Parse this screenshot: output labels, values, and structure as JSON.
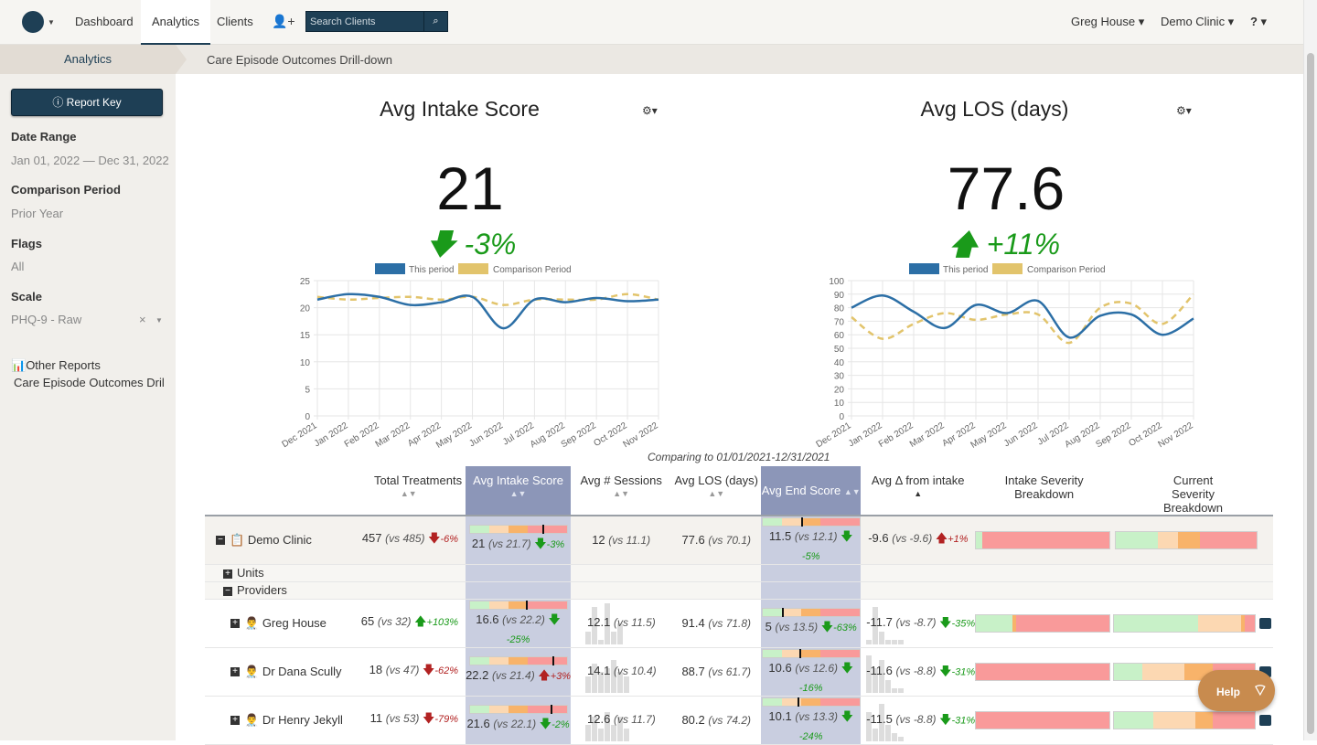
{
  "nav": {
    "items": [
      "Dashboard",
      "Analytics",
      "Clients"
    ],
    "search_placeholder": "Search Clients",
    "user": "Greg House ▾",
    "clinic": "Demo Clinic ▾",
    "help_menu": "? ▾"
  },
  "breadcrumb": {
    "section": "Analytics",
    "page": "Care Episode Outcomes Drill-down"
  },
  "sidebar": {
    "report_key": "Report Key",
    "date_range_label": "Date Range",
    "date_range_value": "Jan 01, 2022 — Dec 31, 2022",
    "comparison_label": "Comparison Period",
    "comparison_value": "Prior Year",
    "flags_label": "Flags",
    "flags_value": "All",
    "scale_label": "Scale",
    "scale_value": "PHQ-9 - Raw",
    "other_reports_label": "Other Reports",
    "other_reports_value": "Care Episode Outcomes Drill-down"
  },
  "kpis": [
    {
      "title": "Avg Intake Score",
      "value": "21",
      "change": "-3%",
      "direction": "down"
    },
    {
      "title": "Avg LOS (days)",
      "value": "77.6",
      "change": "+11%",
      "direction": "up"
    }
  ],
  "legend": {
    "this_period": "This period",
    "comparison": "Comparison Period"
  },
  "colors": {
    "this_period": "#2c6fa6",
    "comparison": "#e2c46c",
    "navy": "#1e3f55"
  },
  "chart_data": [
    {
      "type": "line",
      "x": [
        "Dec 2021",
        "Jan 2022",
        "Feb 2022",
        "Mar 2022",
        "Apr 2022",
        "May 2022",
        "Jun 2022",
        "Jul 2022",
        "Aug 2022",
        "Sep 2022",
        "Oct 2022",
        "Nov 2022"
      ],
      "series": [
        {
          "name": "This period",
          "values": [
            21.5,
            22.5,
            22,
            20.5,
            21,
            22,
            16.2,
            21.5,
            21,
            21.8,
            21.2,
            21.5
          ]
        },
        {
          "name": "Comparison Period",
          "values": [
            22,
            21.5,
            21.8,
            22,
            21.5,
            22,
            20.5,
            21.5,
            21.5,
            21.5,
            22.5,
            21.5
          ]
        }
      ],
      "ylim": [
        0,
        25
      ],
      "yticks": [
        0,
        5,
        10,
        15,
        20,
        25
      ]
    },
    {
      "type": "line",
      "x": [
        "Dec 2021",
        "Jan 2022",
        "Feb 2022",
        "Mar 2022",
        "Apr 2022",
        "May 2022",
        "Jun 2022",
        "Jul 2022",
        "Aug 2022",
        "Sep 2022",
        "Oct 2022",
        "Nov 2022"
      ],
      "series": [
        {
          "name": "This period",
          "values": [
            80,
            89,
            77,
            65,
            82,
            76,
            85,
            58,
            74,
            75,
            60,
            72
          ]
        },
        {
          "name": "Comparison Period",
          "values": [
            73,
            57,
            68,
            76,
            71,
            75,
            75,
            54,
            80,
            83,
            68,
            90
          ]
        }
      ],
      "ylim": [
        0,
        100
      ],
      "yticks": [
        0,
        10,
        20,
        30,
        40,
        50,
        60,
        70,
        80,
        90,
        100
      ]
    }
  ],
  "comparing_text": "Comparing to 01/01/2021-12/31/2021",
  "table": {
    "headers": [
      "Total Treatments",
      "Avg Intake Score",
      "Avg # Sessions",
      "Avg LOS (days)",
      "Avg End Score",
      "Avg Δ from intake",
      "Intake Severity Breakdown",
      "Current Severity Breakdown"
    ],
    "clinic": {
      "name": "Demo Clinic",
      "treatments": "457",
      "treatments_vs": "(vs 485)",
      "treatments_pct": "-6%",
      "intake": "21",
      "intake_vs": "(vs 21.7)",
      "intake_pct": "-3%",
      "sessions": "12",
      "sessions_vs": "(vs 11.1)",
      "los": "77.6",
      "los_vs": "(vs 70.1)",
      "end": "11.5",
      "end_vs": "(vs 12.1)",
      "end_pct": "-5%",
      "delta": "-9.6",
      "delta_vs": "(vs -9.6)",
      "delta_pct": "+1%"
    },
    "units_label": "Units",
    "providers_label": "Providers",
    "providers": [
      {
        "name": "Greg House",
        "treatments": "65",
        "treatments_vs": "(vs 32)",
        "treatments_pct": "+103%",
        "intake": "16.6",
        "intake_vs": "(vs 22.2)",
        "intake_pct": "-25%",
        "sessions": "12.1",
        "sessions_vs": "(vs 11.5)",
        "los": "91.4",
        "los_vs": "(vs 71.8)",
        "end": "5",
        "end_vs": "(vs 13.5)",
        "end_pct": "-63%",
        "delta": "-11.7",
        "delta_vs": "(vs -8.7)",
        "delta_pct": "-35%"
      },
      {
        "name": "Dr Dana Scully",
        "treatments": "18",
        "treatments_vs": "(vs 47)",
        "treatments_pct": "-62%",
        "intake": "22.2",
        "intake_vs": "(vs 21.4)",
        "intake_pct": "+3%",
        "sessions": "14.1",
        "sessions_vs": "(vs 10.4)",
        "los": "88.7",
        "los_vs": "(vs 61.7)",
        "end": "10.6",
        "end_vs": "(vs 12.6)",
        "end_pct": "-16%",
        "delta": "-11.6",
        "delta_vs": "(vs -8.8)",
        "delta_pct": "-31%"
      },
      {
        "name": "Dr Henry Jekyll",
        "treatments": "11",
        "treatments_vs": "(vs 53)",
        "treatments_pct": "-79%",
        "intake": "21.6",
        "intake_vs": "(vs 22.1)",
        "intake_pct": "-2%",
        "sessions": "12.6",
        "sessions_vs": "(vs 11.7)",
        "los": "80.2",
        "los_vs": "(vs 74.2)",
        "end": "10.1",
        "end_vs": "(vs 13.3)",
        "end_pct": "-24%",
        "delta": "-11.5",
        "delta_vs": "(vs -8.8)",
        "delta_pct": "-31%"
      }
    ]
  },
  "help_button": "Help"
}
